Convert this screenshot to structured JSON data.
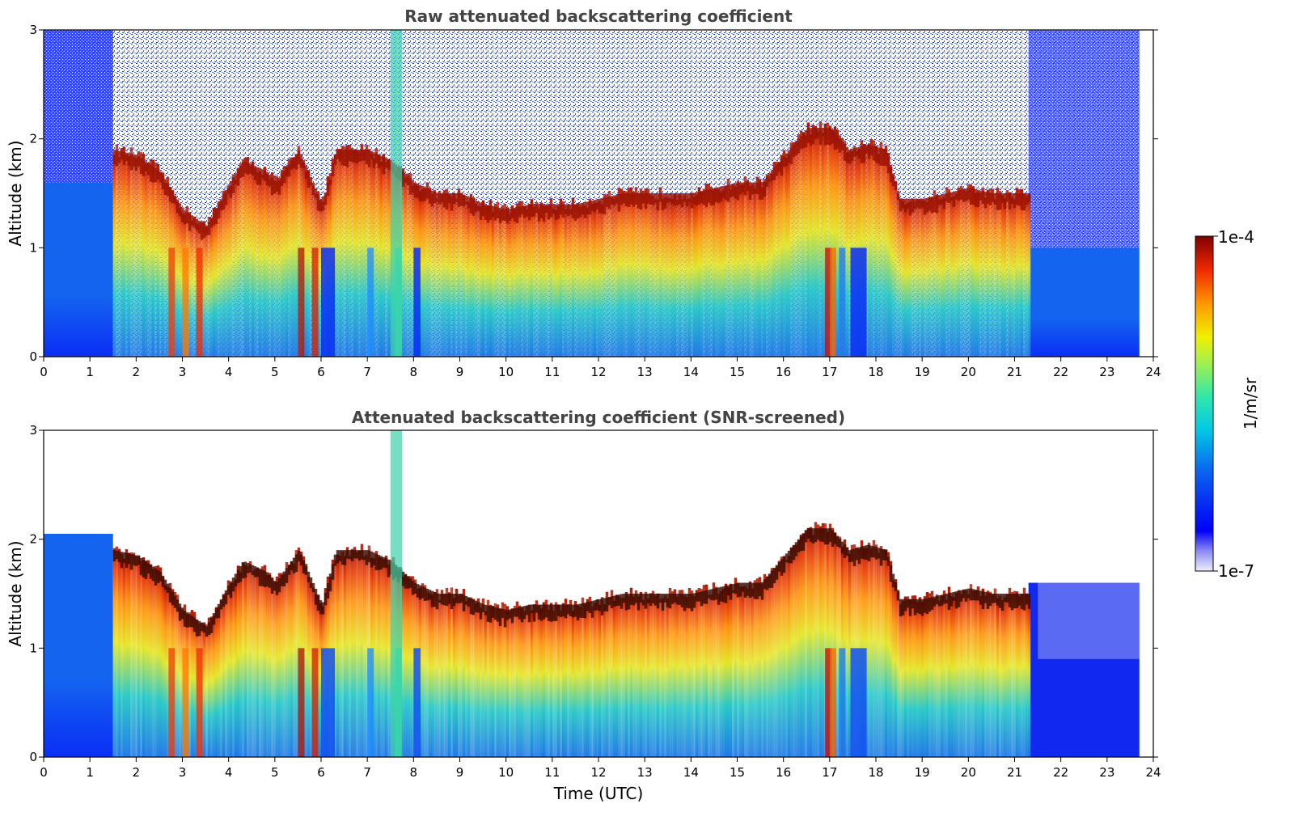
{
  "chart_data": [
    {
      "type": "heatmap",
      "title": "Raw attenuated backscattering coefficient",
      "xlabel": "",
      "ylabel": "Altitude (km)",
      "xlim": [
        0,
        24
      ],
      "ylim": [
        0,
        3
      ],
      "x_ticks": [
        "0",
        "1",
        "2",
        "3",
        "4",
        "5",
        "6",
        "7",
        "8",
        "9",
        "10",
        "11",
        "12",
        "13",
        "14",
        "15",
        "16",
        "17",
        "18",
        "19",
        "20",
        "21",
        "22",
        "23",
        "24"
      ],
      "y_ticks": [
        "0",
        "1",
        "2",
        "3"
      ],
      "data_end_time": 23.7,
      "screened": false,
      "cloud_top_km": [
        [
          1.5,
          1.9
        ],
        [
          2.0,
          1.85
        ],
        [
          2.5,
          1.7
        ],
        [
          3.0,
          1.35
        ],
        [
          3.5,
          1.2
        ],
        [
          4.0,
          1.6
        ],
        [
          4.3,
          1.8
        ],
        [
          4.8,
          1.7
        ],
        [
          5.0,
          1.6
        ],
        [
          5.5,
          1.9
        ],
        [
          6.0,
          1.4
        ],
        [
          6.3,
          1.9
        ],
        [
          7.0,
          1.9
        ],
        [
          7.5,
          1.8
        ],
        [
          8.0,
          1.6
        ],
        [
          8.5,
          1.5
        ],
        [
          9.0,
          1.5
        ],
        [
          9.5,
          1.4
        ],
        [
          10.0,
          1.35
        ],
        [
          10.5,
          1.4
        ],
        [
          11.0,
          1.4
        ],
        [
          11.5,
          1.4
        ],
        [
          12.0,
          1.45
        ],
        [
          12.5,
          1.5
        ],
        [
          13.0,
          1.5
        ],
        [
          13.5,
          1.5
        ],
        [
          14.0,
          1.5
        ],
        [
          14.5,
          1.55
        ],
        [
          15.0,
          1.6
        ],
        [
          15.5,
          1.6
        ],
        [
          16.0,
          1.85
        ],
        [
          16.5,
          2.1
        ],
        [
          17.0,
          2.1
        ],
        [
          17.4,
          1.9
        ],
        [
          17.8,
          1.95
        ],
        [
          18.2,
          1.9
        ],
        [
          18.5,
          1.45
        ],
        [
          19.0,
          1.45
        ],
        [
          19.5,
          1.5
        ],
        [
          20.0,
          1.55
        ],
        [
          20.5,
          1.5
        ],
        [
          21.0,
          1.5
        ],
        [
          21.3,
          1.5
        ]
      ]
    },
    {
      "type": "heatmap",
      "title": "Attenuated backscattering coefficient (SNR-screened)",
      "xlabel": "Time (UTC)",
      "ylabel": "Altitude (km)",
      "xlim": [
        0,
        24
      ],
      "ylim": [
        0,
        3
      ],
      "x_ticks": [
        "0",
        "1",
        "2",
        "3",
        "4",
        "5",
        "6",
        "7",
        "8",
        "9",
        "10",
        "11",
        "12",
        "13",
        "14",
        "15",
        "16",
        "17",
        "18",
        "19",
        "20",
        "21",
        "22",
        "23",
        "24"
      ],
      "y_ticks": [
        "0",
        "1",
        "2",
        "3"
      ],
      "data_end_time": 23.7,
      "screened": true
    }
  ],
  "colorbar": {
    "label": "1/m/sr",
    "max_label": "1e-4",
    "min_label": "1e-7",
    "scale": "log",
    "colormap": "jet"
  },
  "colors": {
    "title": "#444444",
    "background": "#ffffff"
  }
}
